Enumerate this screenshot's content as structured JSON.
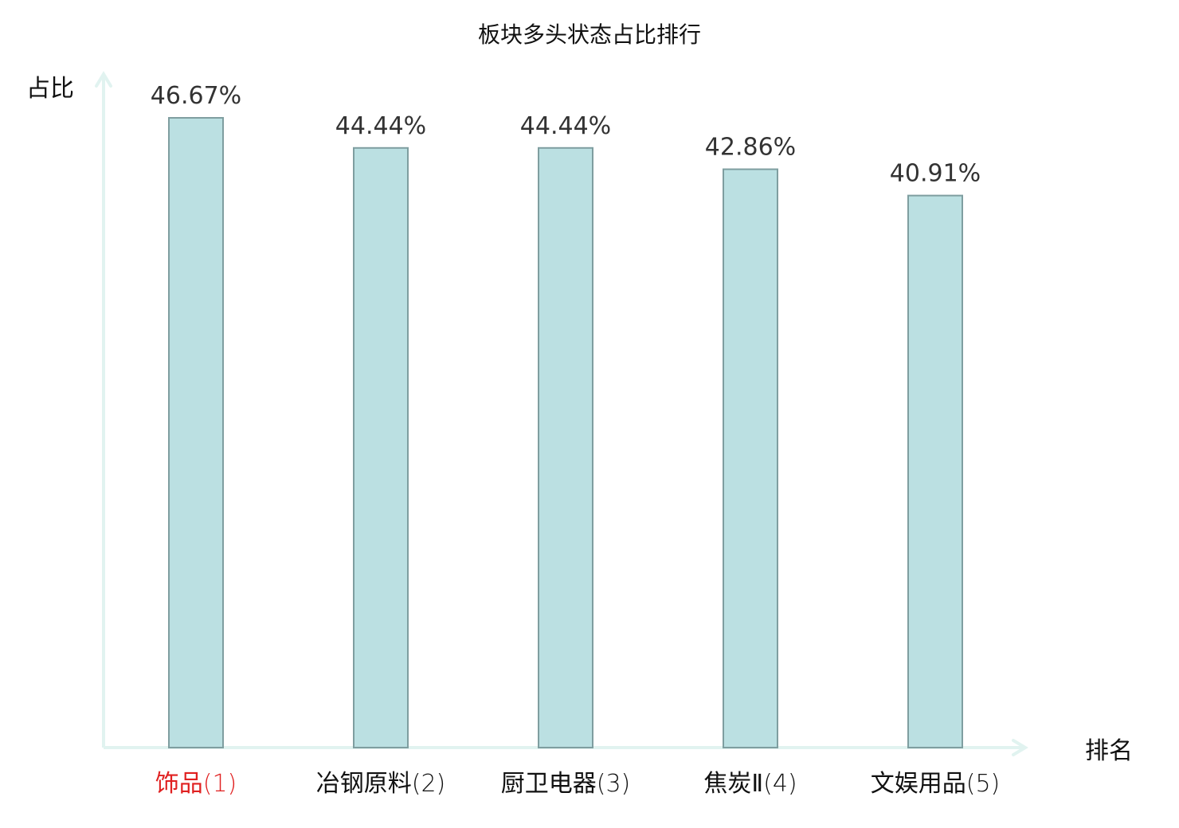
{
  "chart_data": {
    "type": "bar",
    "title": "板块多头状态占比排行",
    "xlabel": "排名",
    "ylabel": "占比",
    "categories": [
      "饰品",
      "冶钢原料",
      "厨卫电器",
      "焦炭Ⅱ",
      "文娱用品"
    ],
    "ranks": [
      "(1)",
      "(2)",
      "(3)",
      "(4)",
      "(5)"
    ],
    "values": [
      46.67,
      44.44,
      44.44,
      42.86,
      40.91
    ],
    "value_labels": [
      "46.67%",
      "44.44%",
      "44.44%",
      "42.86%",
      "40.91%"
    ],
    "ylim": [
      0,
      46.67
    ],
    "highlight_index": 0,
    "grid": false,
    "legend": "none"
  },
  "colors": {
    "bar_fill": "#bbe0e2",
    "bar_stroke": "#7f9ea0",
    "axis": "#e1f3f0",
    "highlight_label": "#e02020",
    "label": "#111111",
    "value_label": "#333333"
  }
}
